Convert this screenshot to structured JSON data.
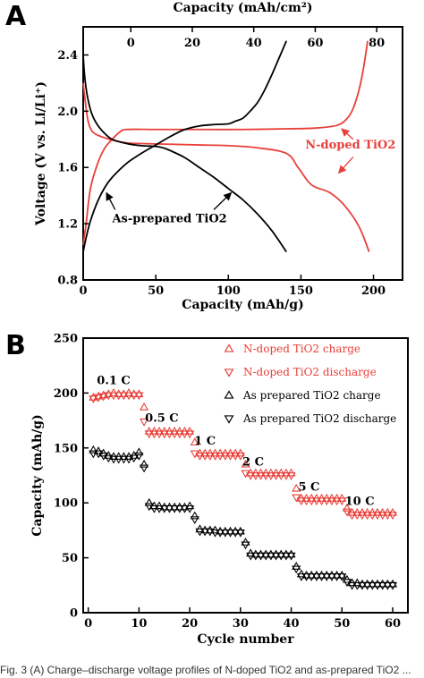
{
  "panel_a_label": "A",
  "panel_b_label": "B",
  "caption": "Fig. 3 (A) Charge–discharge voltage profiles of N-doped TiO2 and as-prepared TiO2 ...",
  "colors": {
    "red": "#e8403a",
    "black": "#000000"
  },
  "chart_data": [
    {
      "type": "line",
      "top_xlabel": "Capacity (mAh/cm²)",
      "xlabel": "Capacity (mAh/g)",
      "ylabel": "Voltage (V vs. Li/Li⁺)",
      "xlim": [
        0,
        220
      ],
      "ylim": [
        0.8,
        2.6
      ],
      "top_xlim": [
        -15.5,
        88.4
      ],
      "xticks": [
        "0",
        "50",
        "100",
        "150",
        "200"
      ],
      "top_xticks": [
        "0",
        "20",
        "40",
        "60",
        "80"
      ],
      "yticks": [
        "0.8",
        "1.2",
        "1.6",
        "2.0",
        "2.4"
      ],
      "annotations": [
        "N-doped TiO2",
        "As-prepared TiO2"
      ],
      "series": [
        {
          "name": "N-doped TiO2",
          "color": "#e8403a",
          "curve": "discharge",
          "x": [
            0,
            3,
            6,
            10,
            15,
            22,
            30,
            40,
            60,
            80,
            100,
            120,
            140,
            148,
            155,
            160,
            170,
            180,
            190,
            197
          ],
          "y": [
            2.2,
            1.95,
            1.86,
            1.83,
            1.81,
            1.79,
            1.775,
            1.77,
            1.765,
            1.76,
            1.755,
            1.74,
            1.7,
            1.6,
            1.5,
            1.46,
            1.42,
            1.33,
            1.18,
            1.0
          ]
        },
        {
          "name": "N-doped TiO2",
          "color": "#e8403a",
          "curve": "charge",
          "x": [
            0,
            2,
            5,
            10,
            15,
            20,
            25,
            30,
            50,
            80,
            110,
            140,
            160,
            175,
            182,
            186,
            190,
            193,
            196
          ],
          "y": [
            1.05,
            1.2,
            1.45,
            1.63,
            1.74,
            1.8,
            1.85,
            1.87,
            1.87,
            1.87,
            1.87,
            1.875,
            1.88,
            1.9,
            1.95,
            2.02,
            2.15,
            2.3,
            2.5
          ]
        },
        {
          "name": "As-prepared TiO2",
          "color": "#000000",
          "curve": "discharge",
          "x": [
            0,
            1,
            3,
            6,
            10,
            15,
            20,
            30,
            40,
            50,
            55,
            60,
            70,
            80,
            90,
            100,
            110,
            120,
            130,
            140
          ],
          "y": [
            2.4,
            2.25,
            2.1,
            1.98,
            1.9,
            1.84,
            1.8,
            1.77,
            1.755,
            1.75,
            1.74,
            1.72,
            1.67,
            1.6,
            1.53,
            1.45,
            1.37,
            1.27,
            1.15,
            1.0
          ]
        },
        {
          "name": "As-prepared TiO2",
          "color": "#000000",
          "curve": "charge",
          "x": [
            0,
            2,
            5,
            10,
            15,
            20,
            30,
            40,
            50,
            60,
            70,
            80,
            90,
            100,
            105,
            110,
            115,
            120,
            125,
            130,
            135,
            140
          ],
          "y": [
            1.0,
            1.1,
            1.22,
            1.36,
            1.46,
            1.53,
            1.63,
            1.7,
            1.76,
            1.82,
            1.87,
            1.895,
            1.905,
            1.91,
            1.93,
            1.95,
            2.0,
            2.06,
            2.15,
            2.26,
            2.38,
            2.5
          ]
        }
      ]
    },
    {
      "type": "scatter",
      "xlabel": "Cycle number",
      "ylabel": "Capacity (mAh/g)",
      "xlim": [
        -1,
        63
      ],
      "ylim": [
        0,
        250
      ],
      "xticks": [
        "0",
        "10",
        "20",
        "30",
        "40",
        "50",
        "60"
      ],
      "yticks": [
        "0",
        "50",
        "100",
        "150",
        "200",
        "250"
      ],
      "legend_position": "top-right",
      "rate_labels": [
        {
          "text": "0.1 C",
          "x": 5,
          "y": 208
        },
        {
          "text": "0.5 C",
          "x": 14.5,
          "y": 174
        },
        {
          "text": "1 C",
          "x": 23,
          "y": 153
        },
        {
          "text": "2 C",
          "x": 32.5,
          "y": 134
        },
        {
          "text": "5 C",
          "x": 43.5,
          "y": 111
        },
        {
          "text": "10 C",
          "x": 53.5,
          "y": 98
        }
      ],
      "series": [
        {
          "name": "N-doped TiO2 charge",
          "color": "#e8403a",
          "marker": "triangle-up",
          "values": [
            196,
            197,
            198,
            199,
            200,
            199,
            199,
            200,
            199,
            199,
            187,
            165,
            165,
            165,
            165,
            165,
            165,
            165,
            165,
            165,
            155,
            145,
            145,
            145,
            145,
            145,
            145,
            145,
            145,
            145,
            135,
            127,
            127,
            127,
            127,
            127,
            127,
            127,
            127,
            127,
            113,
            104,
            104,
            104,
            104,
            104,
            104,
            104,
            104,
            104,
            95,
            91,
            91,
            91,
            91,
            91,
            91,
            91,
            91,
            91
          ]
        },
        {
          "name": "N-doped TiO2 discharge",
          "color": "#e8403a",
          "marker": "triangle-down",
          "values": [
            195,
            196,
            197,
            198,
            198,
            198,
            198,
            198,
            198,
            198,
            174,
            163,
            163,
            163,
            163,
            163,
            163,
            163,
            163,
            163,
            145,
            143,
            143,
            143,
            143,
            143,
            143,
            143,
            143,
            143,
            127,
            125,
            125,
            125,
            125,
            125,
            125,
            125,
            125,
            125,
            105,
            102,
            102,
            102,
            102,
            102,
            102,
            102,
            102,
            102,
            92,
            89,
            89,
            89,
            89,
            89,
            89,
            89,
            89,
            89
          ]
        },
        {
          "name": "As prepared TiO2 charge",
          "color": "#000000",
          "marker": "triangle-up",
          "values": [
            148,
            147,
            145,
            143,
            142,
            142,
            142,
            142,
            143,
            146,
            135,
            100,
            97,
            97,
            96,
            96,
            96,
            96,
            96,
            97,
            88,
            76,
            75,
            75,
            75,
            74,
            74,
            74,
            74,
            74,
            64,
            54,
            53,
            53,
            53,
            53,
            53,
            53,
            53,
            53,
            42,
            35,
            34,
            34,
            34,
            34,
            34,
            34,
            34,
            34,
            30,
            27,
            27,
            26,
            26,
            26,
            26,
            26,
            26,
            26
          ]
        },
        {
          "name": "As prepared TiO2 discharge",
          "color": "#000000",
          "marker": "triangle-down",
          "values": [
            145,
            145,
            143,
            141,
            140,
            140,
            140,
            140,
            141,
            143,
            132,
            97,
            95,
            95,
            95,
            95,
            95,
            95,
            95,
            95,
            85,
            74,
            74,
            74,
            73,
            73,
            73,
            73,
            73,
            73,
            62,
            52,
            52,
            52,
            52,
            52,
            52,
            52,
            52,
            52,
            40,
            33,
            33,
            33,
            33,
            33,
            33,
            33,
            33,
            33,
            28,
            25,
            25,
            25,
            25,
            25,
            25,
            25,
            25,
            25
          ]
        }
      ]
    }
  ]
}
